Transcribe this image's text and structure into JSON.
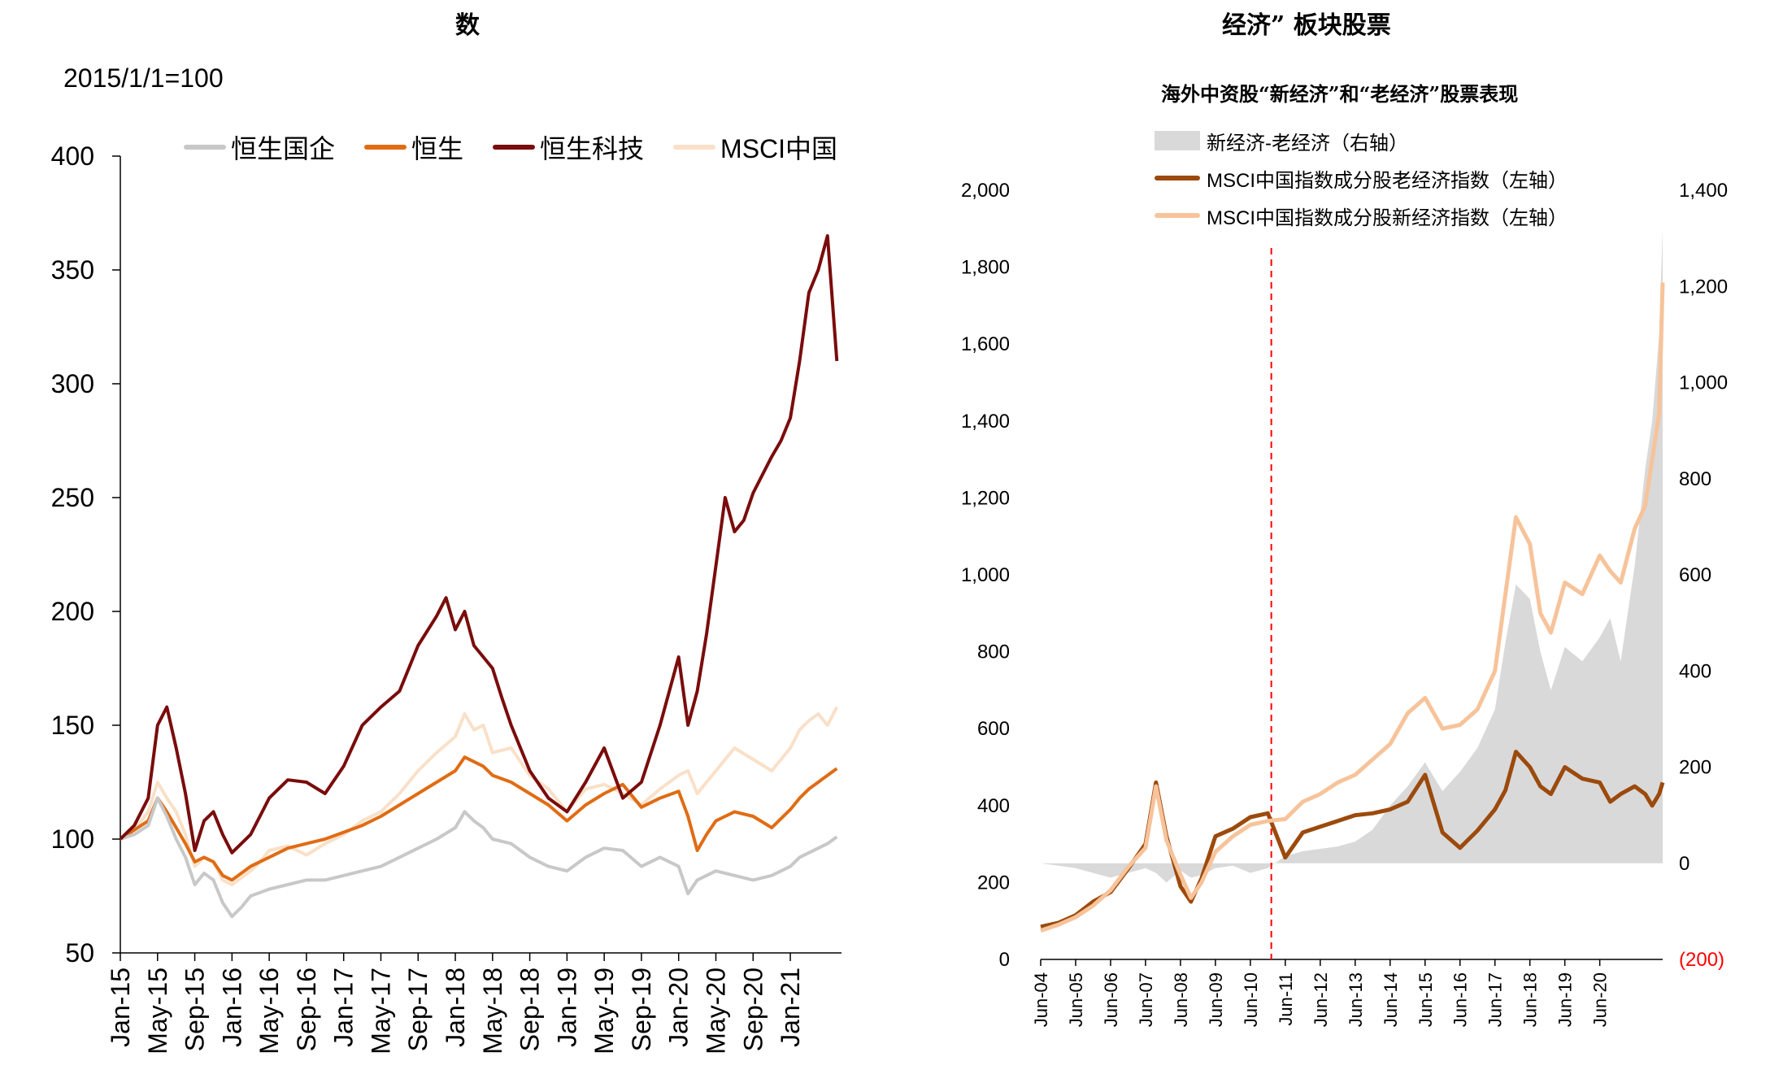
{
  "left": {
    "title_fragments": [
      "数"
    ],
    "base_label": "2015/1/1=100",
    "legend": [
      {
        "label": "恒生国企",
        "color": "#c8c8c8"
      },
      {
        "label": "恒生",
        "color": "#e06c14"
      },
      {
        "label": "恒生科技",
        "color": "#7a0c0c"
      },
      {
        "label": "MSCI中国",
        "color": "#f9e0c8"
      }
    ],
    "chart_data": {
      "type": "line",
      "title": "",
      "ylabel": "2015/1/1=100",
      "ylim": [
        50,
        400
      ],
      "yticks": [
        "50",
        "100",
        "150",
        "200",
        "250",
        "300",
        "350",
        "400"
      ],
      "x_range": [
        0,
        77.5
      ],
      "x_ticks": [
        {
          "label": "Jan-15",
          "x": 0
        },
        {
          "label": "May-15",
          "x": 4
        },
        {
          "label": "Sep-15",
          "x": 8
        },
        {
          "label": "Jan-16",
          "x": 12
        },
        {
          "label": "May-16",
          "x": 16
        },
        {
          "label": "Sep-16",
          "x": 20
        },
        {
          "label": "Jan-17",
          "x": 24
        },
        {
          "label": "May-17",
          "x": 28
        },
        {
          "label": "Sep-17",
          "x": 32
        },
        {
          "label": "Jan-18",
          "x": 36
        },
        {
          "label": "May-18",
          "x": 40
        },
        {
          "label": "Sep-18",
          "x": 44
        },
        {
          "label": "Jan-19",
          "x": 48
        },
        {
          "label": "May-19",
          "x": 52
        },
        {
          "label": "Sep-19",
          "x": 56
        },
        {
          "label": "Jan-20",
          "x": 60
        },
        {
          "label": "May-20",
          "x": 64
        },
        {
          "label": "Sep-20",
          "x": 68
        },
        {
          "label": "Jan-21",
          "x": 72
        }
      ],
      "series": [
        {
          "name": "MSCI中国",
          "color": "#f9e0c8",
          "x": [
            0,
            1.5,
            3,
            4,
            5,
            6,
            7,
            8,
            9,
            10,
            11,
            12,
            13,
            14,
            15,
            16,
            18,
            20,
            22,
            24,
            26,
            28,
            30,
            32,
            34,
            36,
            37,
            38,
            39,
            40,
            42,
            44,
            46,
            48,
            50,
            52,
            54,
            56,
            58,
            60,
            61,
            62,
            63,
            64,
            66,
            68,
            70,
            72,
            73,
            74,
            75,
            76,
            77
          ],
          "y": [
            100,
            104,
            112,
            125,
            118,
            112,
            102,
            88,
            92,
            90,
            82,
            80,
            83,
            86,
            90,
            95,
            97,
            93,
            98,
            102,
            108,
            112,
            120,
            130,
            138,
            145,
            155,
            148,
            150,
            138,
            140,
            128,
            122,
            112,
            122,
            124,
            120,
            115,
            122,
            128,
            130,
            120,
            125,
            130,
            140,
            135,
            130,
            140,
            148,
            152,
            155,
            150,
            158
          ]
        },
        {
          "name": "恒生",
          "color": "#e06c14",
          "x": [
            0,
            1.5,
            3,
            4,
            5,
            6,
            7,
            8,
            9,
            10,
            11,
            12,
            13,
            14,
            16,
            18,
            20,
            22,
            24,
            26,
            28,
            30,
            32,
            34,
            36,
            37,
            38,
            39,
            40,
            42,
            44,
            46,
            48,
            50,
            52,
            54,
            56,
            58,
            60,
            61,
            62,
            63,
            64,
            66,
            68,
            70,
            72,
            73,
            74,
            75,
            76,
            77
          ],
          "y": [
            100,
            104,
            108,
            118,
            112,
            105,
            98,
            90,
            92,
            90,
            84,
            82,
            85,
            88,
            92,
            96,
            98,
            100,
            103,
            106,
            110,
            115,
            120,
            125,
            130,
            136,
            134,
            132,
            128,
            125,
            120,
            115,
            108,
            115,
            120,
            124,
            114,
            118,
            121,
            110,
            95,
            102,
            108,
            112,
            110,
            105,
            113,
            118,
            122,
            125,
            128,
            131
          ]
        },
        {
          "name": "恒生国企",
          "color": "#c8c8c8",
          "x": [
            0,
            1.5,
            3,
            4,
            5,
            6,
            7,
            8,
            9,
            10,
            11,
            12,
            13,
            14,
            16,
            18,
            20,
            22,
            24,
            26,
            28,
            30,
            32,
            34,
            36,
            37,
            38,
            39,
            40,
            42,
            44,
            46,
            48,
            50,
            52,
            54,
            56,
            58,
            60,
            61,
            62,
            63,
            64,
            66,
            68,
            70,
            72,
            73,
            74,
            75,
            76,
            77
          ],
          "y": [
            100,
            102,
            106,
            118,
            110,
            100,
            92,
            80,
            85,
            82,
            72,
            66,
            70,
            75,
            78,
            80,
            82,
            82,
            84,
            86,
            88,
            92,
            96,
            100,
            105,
            112,
            108,
            105,
            100,
            98,
            92,
            88,
            86,
            92,
            96,
            95,
            88,
            92,
            88,
            76,
            82,
            84,
            86,
            84,
            82,
            84,
            88,
            92,
            94,
            96,
            98,
            101
          ]
        },
        {
          "name": "恒生科技",
          "color": "#7a0c0c",
          "x": [
            0,
            1.5,
            3,
            4,
            5,
            6,
            7,
            8,
            9,
            10,
            11,
            12,
            13,
            14,
            15,
            16,
            18,
            20,
            22,
            24,
            26,
            28,
            30,
            32,
            34,
            35,
            36,
            37,
            38,
            39,
            40,
            41,
            42,
            44,
            46,
            48,
            50,
            52,
            54,
            56,
            58,
            60,
            61,
            62,
            63,
            64,
            65,
            66,
            67,
            68,
            69,
            70,
            71,
            72,
            73,
            74,
            75,
            76,
            77
          ],
          "y": [
            100,
            106,
            118,
            150,
            158,
            140,
            120,
            95,
            108,
            112,
            102,
            94,
            98,
            102,
            110,
            118,
            126,
            125,
            120,
            132,
            150,
            158,
            165,
            185,
            198,
            206,
            192,
            200,
            185,
            180,
            175,
            162,
            150,
            130,
            118,
            112,
            125,
            140,
            118,
            125,
            150,
            180,
            150,
            165,
            190,
            220,
            250,
            235,
            240,
            252,
            260,
            268,
            275,
            285,
            310,
            340,
            350,
            365,
            310
          ]
        }
      ]
    }
  },
  "right": {
    "title_fragments": [
      "经济”  板块股票"
    ],
    "chart_title": "海外中资股“新经济”和“老经济”股票表现",
    "legend": [
      {
        "label": "新经济-老经济（右轴）",
        "color": "#d9d9d9"
      },
      {
        "label": "MSCI中国指数成分股老经济指数（左轴）",
        "color": "#9c4a0c"
      },
      {
        "label": "MSCI中国指数成分股新经济指数（左轴）",
        "color": "#f7c39a"
      }
    ],
    "chart_data": {
      "type": "line",
      "title": "海外中资股“新经济”和“老经济”股票表现",
      "y_left": {
        "ticks": [
          "0",
          "200",
          "400",
          "600",
          "800",
          "1,000",
          "1,200",
          "1,400",
          "1,600",
          "1,800",
          "2,000"
        ],
        "lim": [
          0,
          2000
        ]
      },
      "y_right": {
        "ticks": [
          "(200)",
          "0",
          "200",
          "400",
          "600",
          "800",
          "1,000",
          "1,200",
          "1,400"
        ],
        "lim": [
          -200,
          1400
        ],
        "negative_color": "#ff0000"
      },
      "x_range": [
        0,
        17.8
      ],
      "x_ticks": [
        {
          "label": "Jun-04",
          "x": 0
        },
        {
          "label": "Jun-05",
          "x": 1
        },
        {
          "label": "Jun-06",
          "x": 2
        },
        {
          "label": "Jun-07",
          "x": 3
        },
        {
          "label": "Jun-08",
          "x": 4
        },
        {
          "label": "Jun-09",
          "x": 5
        },
        {
          "label": "Jun-10",
          "x": 6
        },
        {
          "label": "Jun-11",
          "x": 7
        },
        {
          "label": "Jun-12",
          "x": 8
        },
        {
          "label": "Jun-13",
          "x": 9
        },
        {
          "label": "Jun-14",
          "x": 10
        },
        {
          "label": "Jun-15",
          "x": 11
        },
        {
          "label": "Jun-16",
          "x": 12
        },
        {
          "label": "Jun-17",
          "x": 13
        },
        {
          "label": "Jun-18",
          "x": 14
        },
        {
          "label": "Jun-19",
          "x": 15
        },
        {
          "label": "Jun-20",
          "x": 16
        }
      ],
      "marker_line": {
        "x": 6.6,
        "color": "#ff0000",
        "style": "dashed"
      },
      "series": [
        {
          "name": "新经济-老经济（右轴）",
          "axis": "right",
          "type": "area",
          "color": "#d9d9d9",
          "x": [
            0,
            0.5,
            1,
            1.5,
            2,
            2.5,
            3,
            3.3,
            3.6,
            4,
            4.3,
            4.6,
            5,
            5.5,
            6,
            6.5,
            7,
            7.5,
            8,
            8.5,
            9,
            9.5,
            10,
            10.5,
            11,
            11.5,
            12,
            12.5,
            13,
            13.3,
            13.6,
            14,
            14.3,
            14.6,
            15,
            15.5,
            16,
            16.3,
            16.6,
            17,
            17.3,
            17.5,
            17.7,
            17.8
          ],
          "y": [
            0,
            -5,
            -10,
            -20,
            -30,
            -20,
            -10,
            -20,
            -40,
            -15,
            -30,
            -25,
            -10,
            -5,
            -20,
            -10,
            15,
            25,
            30,
            35,
            45,
            70,
            120,
            160,
            210,
            150,
            190,
            240,
            320,
            460,
            580,
            550,
            440,
            360,
            450,
            420,
            470,
            510,
            420,
            620,
            820,
            920,
            1100,
            1320
          ]
        },
        {
          "name": "MSCI中国指数成分股老经济指数（左轴）",
          "axis": "left",
          "type": "line",
          "color": "#9c4a0c",
          "x": [
            0,
            0.5,
            1,
            1.5,
            2,
            2.5,
            3,
            3.3,
            3.6,
            4,
            4.3,
            4.6,
            5,
            5.5,
            6,
            6.5,
            7,
            7.5,
            8,
            8.5,
            9,
            9.5,
            10,
            10.5,
            11,
            11.5,
            12,
            12.5,
            13,
            13.3,
            13.6,
            14,
            14.3,
            14.6,
            15,
            15.5,
            16,
            16.3,
            16.6,
            17,
            17.3,
            17.5,
            17.7,
            17.8
          ],
          "y": [
            85,
            95,
            115,
            150,
            175,
            235,
            300,
            460,
            320,
            190,
            150,
            210,
            320,
            340,
            370,
            380,
            265,
            330,
            345,
            360,
            375,
            380,
            390,
            410,
            480,
            330,
            290,
            335,
            390,
            440,
            540,
            500,
            450,
            430,
            500,
            470,
            460,
            410,
            430,
            450,
            430,
            400,
            430,
            460
          ]
        },
        {
          "name": "MSCI中国指数成分股新经济指数（左轴）",
          "axis": "left",
          "type": "line",
          "color": "#f7c39a",
          "x": [
            0,
            0.5,
            1,
            1.5,
            2,
            2.5,
            3,
            3.3,
            3.6,
            4,
            4.3,
            4.6,
            5,
            5.5,
            6,
            6.5,
            7,
            7.5,
            8,
            8.5,
            9,
            9.5,
            10,
            10.5,
            11,
            11.5,
            12,
            12.5,
            13,
            13.3,
            13.6,
            14,
            14.3,
            14.6,
            15,
            15.5,
            16,
            16.3,
            16.6,
            17,
            17.3,
            17.5,
            17.7,
            17.8
          ],
          "y": [
            75,
            90,
            110,
            140,
            180,
            240,
            290,
            450,
            310,
            220,
            160,
            200,
            280,
            320,
            350,
            360,
            365,
            410,
            430,
            460,
            480,
            520,
            560,
            640,
            680,
            600,
            610,
            650,
            750,
            950,
            1150,
            1080,
            900,
            850,
            980,
            950,
            1050,
            1010,
            980,
            1120,
            1180,
            1300,
            1420,
            1760
          ]
        }
      ]
    }
  }
}
